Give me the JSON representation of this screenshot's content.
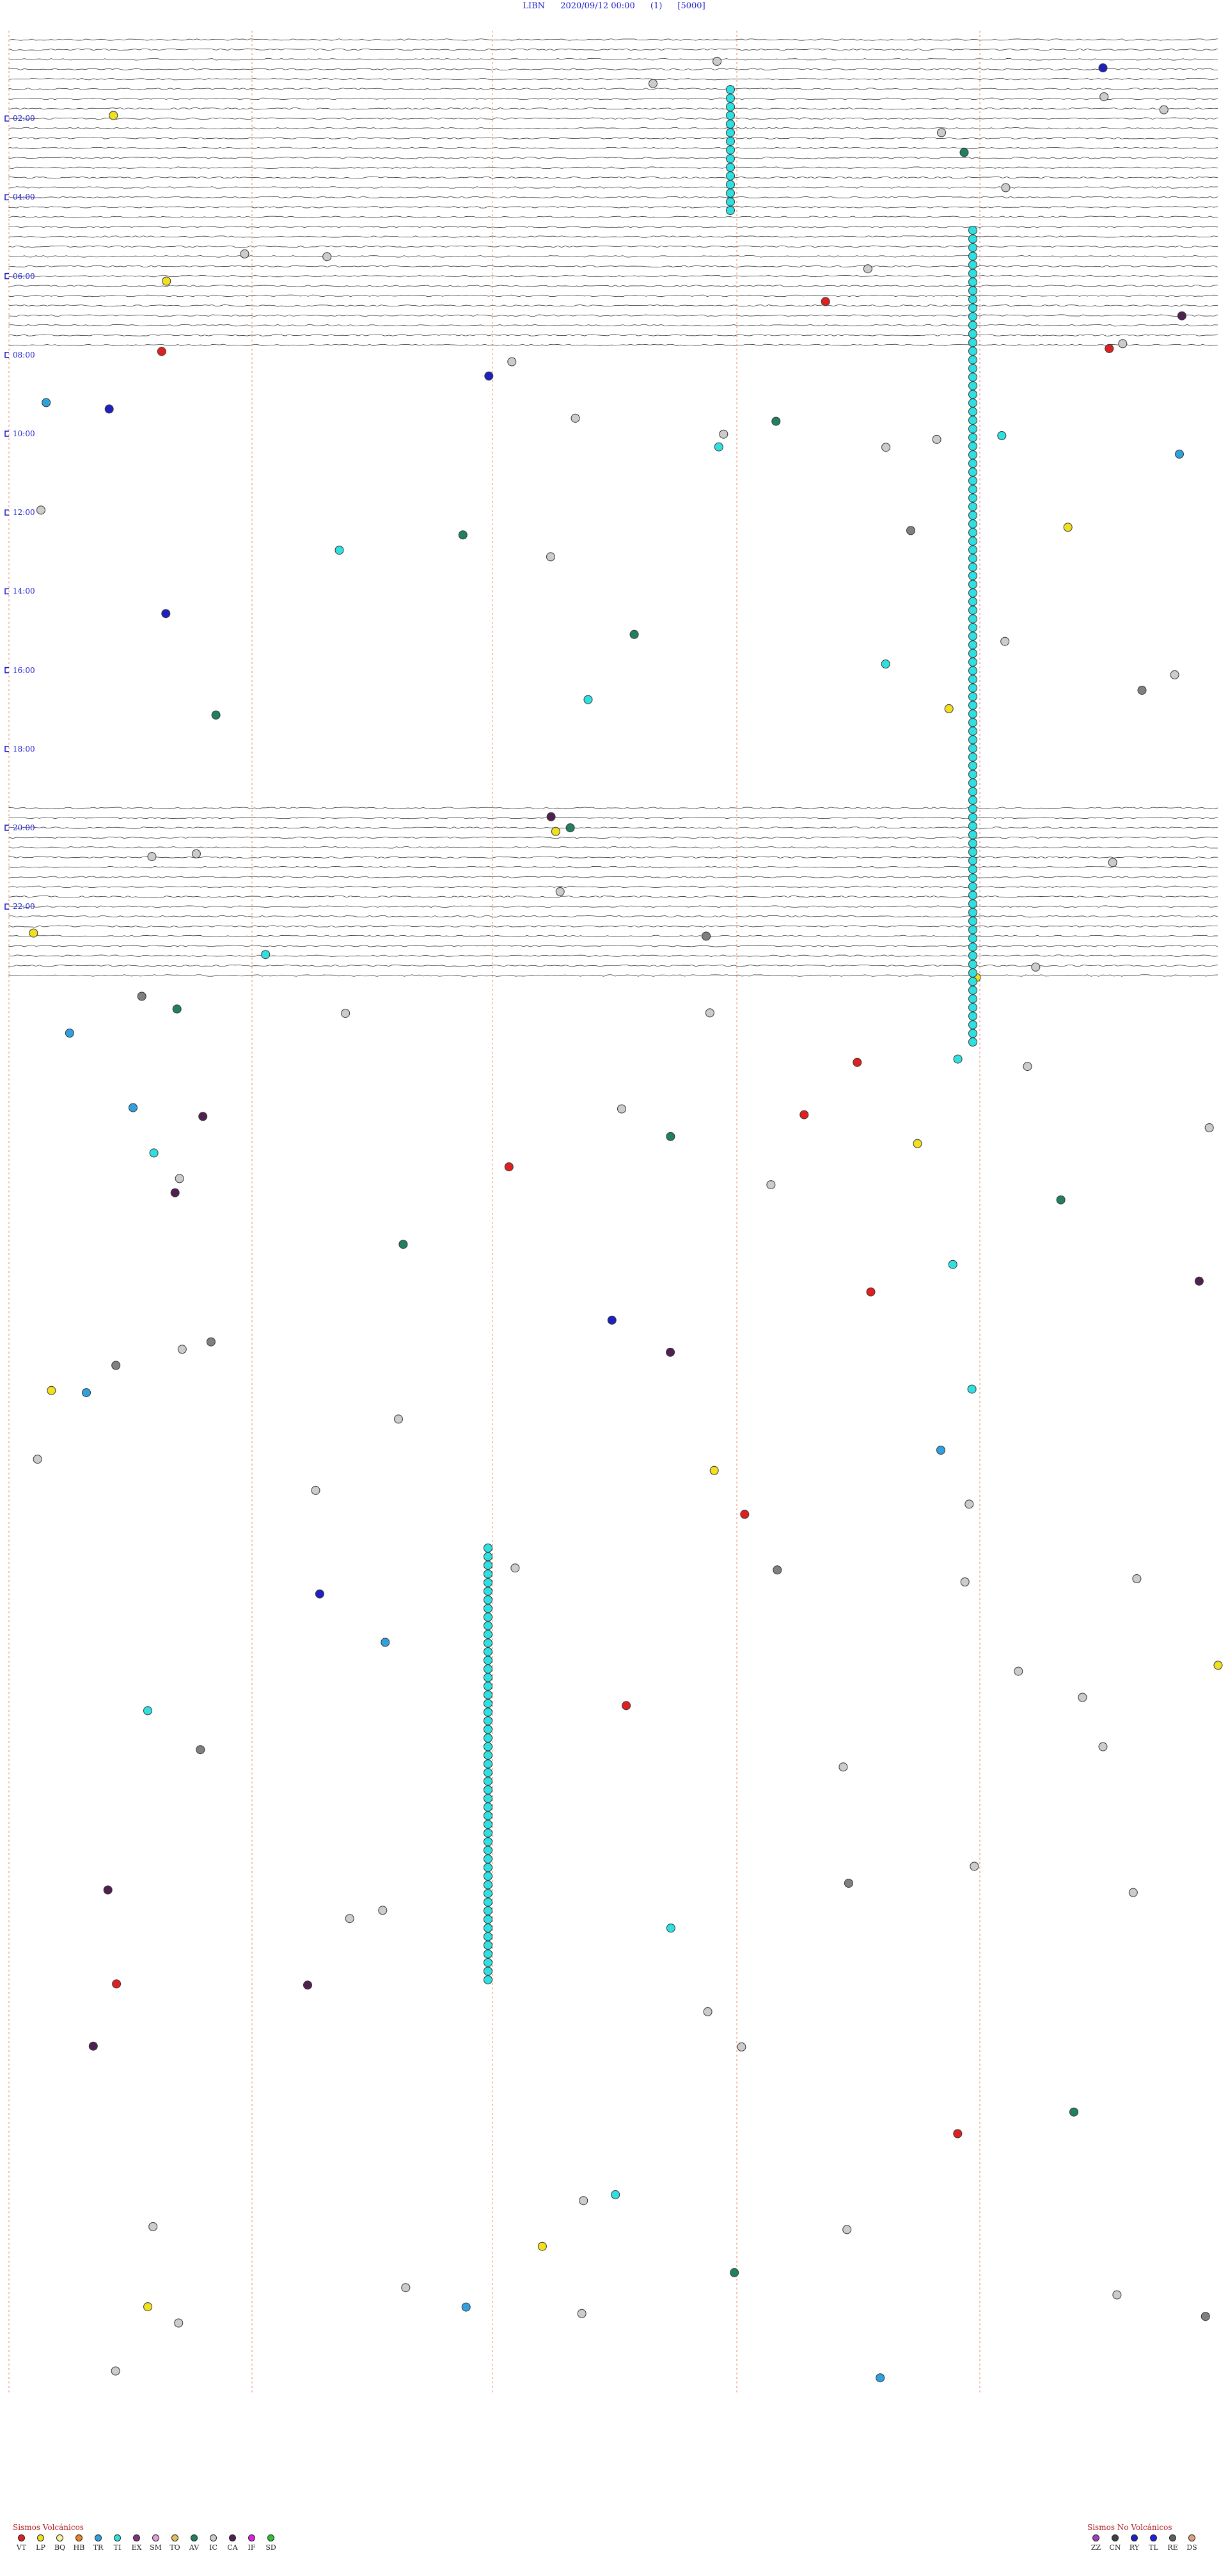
{
  "header": {
    "station": "LIBN",
    "datetime": "2020/09/12 00:00",
    "channel": "(1)",
    "scale": "[5000]"
  },
  "chart_data": {
    "type": "helicorder",
    "hour_labels": [
      "02:00",
      "04:00",
      "06:00",
      "08:00",
      "10:00",
      "12:00",
      "14:00",
      "16:00",
      "18:00",
      "20:00",
      "22:00"
    ],
    "traces_visible_ranges": [
      [
        0,
        8.1
      ],
      [
        19.6,
        24.1
      ]
    ],
    "legend_volcanic": {
      "title": "Sismos Volcánicos",
      "items": [
        {
          "code": "VT",
          "color": "#e02020"
        },
        {
          "code": "LP",
          "color": "#f0e020"
        },
        {
          "code": "BQ",
          "color": "#f5f5a0"
        },
        {
          "code": "HB",
          "color": "#f08020"
        },
        {
          "code": "TR",
          "color": "#30a0e0"
        },
        {
          "code": "TI",
          "color": "#30e0e0"
        },
        {
          "code": "EX",
          "color": "#803080"
        },
        {
          "code": "SM",
          "color": "#e0a0e0"
        },
        {
          "code": "TO",
          "color": "#e0c060"
        },
        {
          "code": "AV",
          "color": "#208060"
        },
        {
          "code": "IC",
          "color": "#cccccc"
        },
        {
          "code": "CA",
          "color": "#502050"
        },
        {
          "code": "IF",
          "color": "#e020e0"
        },
        {
          "code": "SD",
          "color": "#30c030"
        }
      ]
    },
    "legend_nonvolcanic": {
      "title": "Sismos No Volcánicos",
      "items": [
        {
          "code": "ZZ",
          "color": "#a040c0"
        },
        {
          "code": "CN",
          "color": "#404040"
        },
        {
          "code": "RY",
          "color": "#2020c0"
        },
        {
          "code": "TL",
          "color": "#2020e0"
        },
        {
          "code": "RE",
          "color": "#606060"
        },
        {
          "code": "DS",
          "color": "#e0a080"
        }
      ]
    }
  }
}
